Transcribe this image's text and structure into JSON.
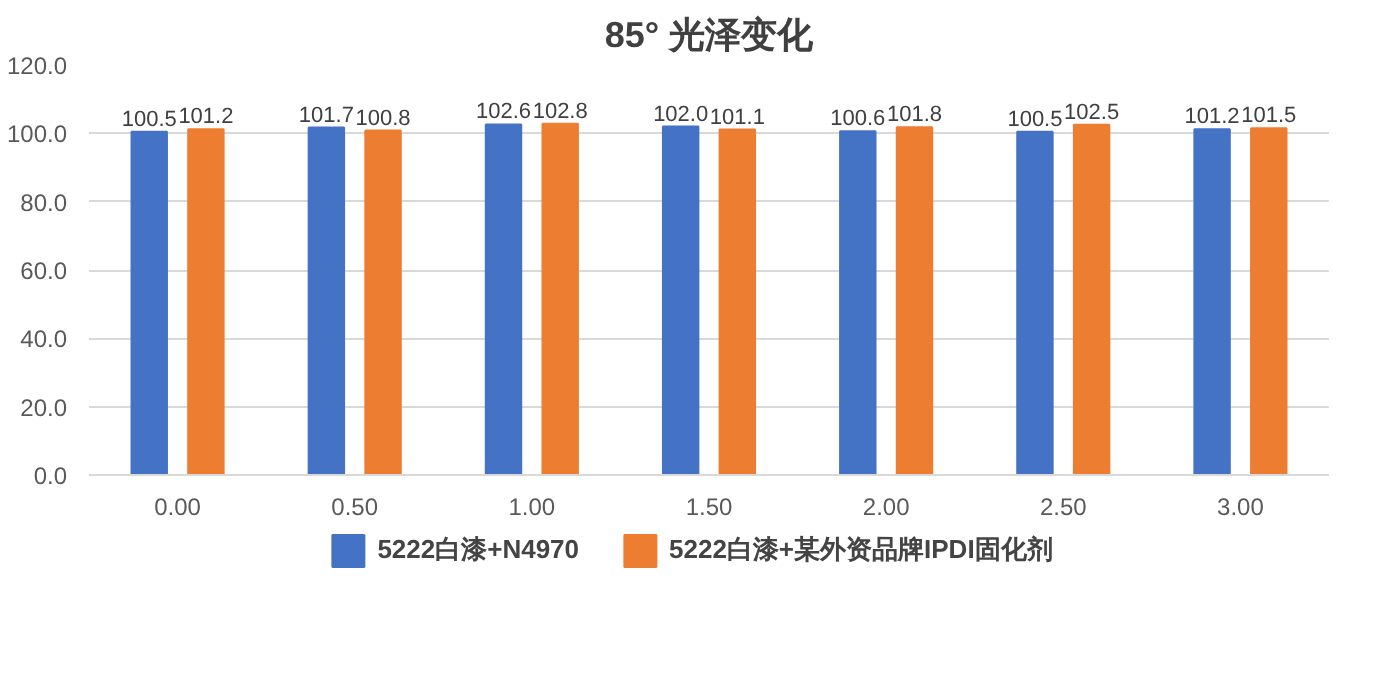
{
  "chart_data": {
    "type": "bar",
    "title": "85° 光泽变化",
    "categories": [
      "0.00",
      "0.50",
      "1.00",
      "1.50",
      "2.00",
      "2.50",
      "3.00"
    ],
    "series": [
      {
        "name": "5222白漆+N4970",
        "color": "#4472c4",
        "values": [
          100.5,
          101.7,
          102.6,
          102.0,
          100.6,
          100.5,
          101.2
        ],
        "value_labels": [
          "100.5",
          "101.7",
          "102.6",
          "102.0",
          "100.6",
          "100.5",
          "101.2"
        ]
      },
      {
        "name": "5222白漆+某外资品牌IPDI固化剂",
        "color": "#ed7d31",
        "values": [
          101.2,
          100.8,
          102.8,
          101.1,
          101.8,
          102.5,
          101.5
        ],
        "value_labels": [
          "101.2",
          "100.8",
          "102.8",
          "101.1",
          "101.8",
          "102.5",
          "101.5"
        ]
      }
    ],
    "ylim": [
      0,
      120
    ],
    "yticks": [
      {
        "value": 0,
        "label": "0.0"
      },
      {
        "value": 20,
        "label": "20.0"
      },
      {
        "value": 40,
        "label": "40.0"
      },
      {
        "value": 60,
        "label": "60.0"
      },
      {
        "value": 80,
        "label": "80.0"
      },
      {
        "value": 100,
        "label": "100.0"
      },
      {
        "value": 120,
        "label": "120.0"
      }
    ],
    "grid": "y",
    "legend": "bottom",
    "data_labels": true
  }
}
